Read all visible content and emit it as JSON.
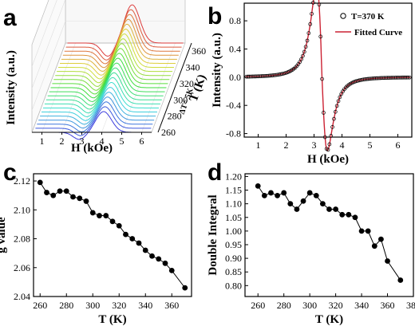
{
  "panel_labels": {
    "a": "a",
    "b": "b",
    "c": "c",
    "d": "d"
  },
  "chart_data": [
    {
      "panel": "a",
      "type": "line",
      "xlabel": "H (kOe)",
      "ylabel": "Intensity (a.u.)",
      "zlabel": "T (K)",
      "delta_label": "ΔT= 5K",
      "xticks": [
        "1",
        "2",
        "3",
        "4",
        "5",
        "6"
      ],
      "zticks": [
        "260",
        "280",
        "300",
        "320",
        "340",
        "360"
      ],
      "xlim": [
        0.5,
        6.5
      ],
      "temperatures": [
        260,
        265,
        270,
        275,
        280,
        285,
        290,
        295,
        300,
        305,
        310,
        315,
        320,
        325,
        330,
        335,
        340,
        345,
        350,
        355,
        360,
        365,
        370
      ],
      "center_field": 3.6,
      "grid": true
    },
    {
      "panel": "b",
      "type": "line",
      "xlabel": "H (kOe)",
      "ylabel": "Intensity (a.u.)",
      "xlim": [
        0.5,
        6.5
      ],
      "ylim": [
        -0.85,
        1.05
      ],
      "xticks": [
        "1",
        "2",
        "3",
        "4",
        "5",
        "6"
      ],
      "yticks": [
        "-0.8",
        "-0.4",
        "0.0",
        "0.4",
        "0.8"
      ],
      "series": [
        {
          "name": "T=370 K",
          "style": "open-circles",
          "color": "#000000"
        },
        {
          "name": "Fitted Curve",
          "style": "line",
          "color": "#cc2233"
        }
      ],
      "legend": "top-right",
      "peak": {
        "x": 2.95,
        "y": 1.0
      },
      "trough": {
        "x": 3.62,
        "y": -0.8
      }
    },
    {
      "panel": "c",
      "type": "line",
      "xlabel": "T (K)",
      "ylabel": "g value",
      "xlim": [
        255,
        375
      ],
      "ylim": [
        2.04,
        2.125
      ],
      "xticks": [
        "260",
        "280",
        "300",
        "320",
        "340",
        "360"
      ],
      "yticks": [
        "2.04",
        "2.06",
        "2.08",
        "2.10",
        "2.12"
      ],
      "x": [
        260,
        265,
        270,
        275,
        280,
        285,
        290,
        295,
        300,
        305,
        310,
        315,
        320,
        325,
        330,
        335,
        340,
        345,
        350,
        355,
        360,
        370
      ],
      "values": [
        2.119,
        2.112,
        2.11,
        2.113,
        2.113,
        2.109,
        2.108,
        2.106,
        2.098,
        2.096,
        2.096,
        2.092,
        2.089,
        2.083,
        2.08,
        2.077,
        2.072,
        2.068,
        2.066,
        2.063,
        2.058,
        2.046
      ]
    },
    {
      "panel": "d",
      "type": "line",
      "xlabel": "T (K)",
      "ylabel": "Double Integral",
      "xlim": [
        250,
        380
      ],
      "ylim": [
        0.76,
        1.21
      ],
      "xticks": [
        "260",
        "280",
        "300",
        "320",
        "340",
        "360",
        "380"
      ],
      "yticks": [
        "0.80",
        "0.85",
        "0.90",
        "0.95",
        "1.00",
        "1.05",
        "1.10",
        "1.15",
        "1.20"
      ],
      "x": [
        260,
        265,
        270,
        275,
        280,
        285,
        290,
        295,
        300,
        305,
        310,
        315,
        320,
        325,
        330,
        335,
        340,
        345,
        350,
        355,
        360,
        370
      ],
      "values": [
        1.165,
        1.13,
        1.14,
        1.13,
        1.14,
        1.1,
        1.08,
        1.11,
        1.14,
        1.13,
        1.1,
        1.08,
        1.08,
        1.06,
        1.06,
        1.05,
        1.0,
        1.0,
        0.945,
        0.97,
        0.89,
        0.82
      ]
    }
  ]
}
